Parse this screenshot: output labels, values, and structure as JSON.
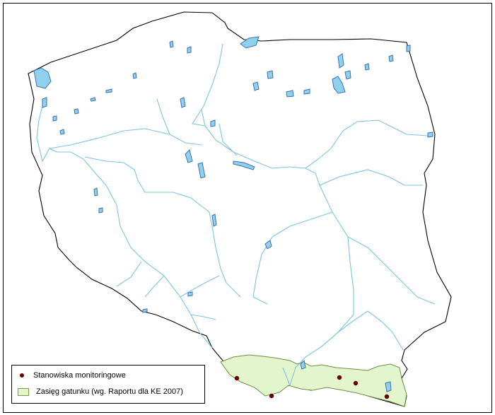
{
  "map": {
    "colors": {
      "land": "#ffffff",
      "border": "#000000",
      "river": "#7cc4dd",
      "lake": "#8fd0ec",
      "lake_stroke": "#3f6fb0",
      "range_fill": "#e3f5cc",
      "range_stroke": "#6b8f3e",
      "site": "#6b0000"
    },
    "feature_names": [
      "country-outline",
      "rivers",
      "lakes",
      "species-range",
      "monitoring-sites"
    ]
  },
  "legend": {
    "sites_label": "Stanowiska monitoringowe",
    "range_label": "Zasięg gatunku (wg. Raportu dla KE 2007)"
  }
}
